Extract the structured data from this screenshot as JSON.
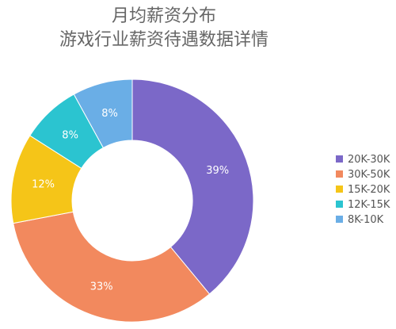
{
  "chart_data": {
    "type": "pie",
    "title": "月均薪资分布",
    "subtitle": "游戏行业薪资待遇数据详情",
    "donut": true,
    "legend_position": "right",
    "slices": [
      {
        "label": "20K-30K",
        "value": 39,
        "display": "39%",
        "color": "#7b68c8"
      },
      {
        "label": "30K-50K",
        "value": 33,
        "display": "33%",
        "color": "#f2895e"
      },
      {
        "label": "15K-20K",
        "value": 12,
        "display": "12%",
        "color": "#f5c518"
      },
      {
        "label": "12K-15K",
        "value": 8,
        "display": "8%",
        "color": "#2bc4d0"
      },
      {
        "label": "8K-10K",
        "value": 8,
        "display": "8%",
        "color": "#6aaee6"
      }
    ]
  }
}
